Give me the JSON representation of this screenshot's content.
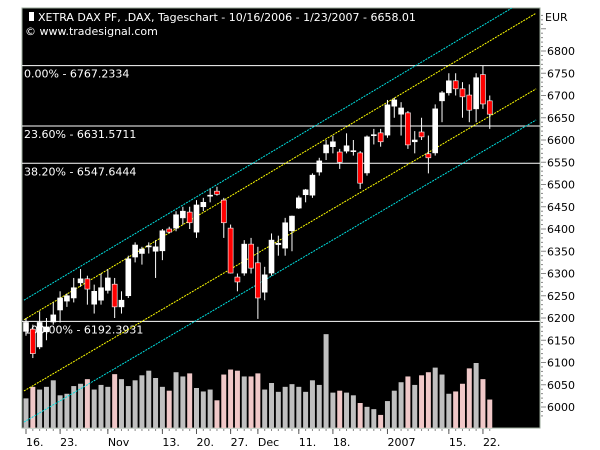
{
  "chart_data": {
    "type": "candlestick",
    "title": "XETRA DAX PF, .DAX, Tageschart - 10/16/2006 - 1/23/2007 - 6658.01",
    "subtitle": "© www.tradesignal.com",
    "ylabel": "EUR",
    "ylim": [
      5975,
      6890
    ],
    "y_ticks": [
      6000,
      6050,
      6100,
      6150,
      6200,
      6250,
      6300,
      6350,
      6400,
      6450,
      6500,
      6550,
      6600,
      6650,
      6700,
      6750,
      6800
    ],
    "x_ticks": [
      {
        "bar": 0,
        "label": "16."
      },
      {
        "bar": 5,
        "label": "23."
      },
      {
        "bar": 12,
        "label": "Nov"
      },
      {
        "bar": 20,
        "label": "13."
      },
      {
        "bar": 25,
        "label": "20."
      },
      {
        "bar": 30,
        "label": "27."
      },
      {
        "bar": 34,
        "label": "Dec"
      },
      {
        "bar": 40,
        "label": "11."
      },
      {
        "bar": 45,
        "label": "18."
      },
      {
        "bar": 53,
        "label": "2007"
      },
      {
        "bar": 62,
        "label": "15."
      },
      {
        "bar": 67,
        "label": "22."
      }
    ],
    "ohlc": [
      [
        6170,
        6200,
        6160,
        6190
      ],
      [
        6175,
        6185,
        6110,
        6120
      ],
      [
        6135,
        6215,
        6130,
        6190
      ],
      [
        6169,
        6200,
        6150,
        6180
      ],
      [
        6191,
        6235,
        6185,
        6207
      ],
      [
        6218,
        6260,
        6190,
        6245
      ],
      [
        6238,
        6255,
        6225,
        6250
      ],
      [
        6245,
        6290,
        6235,
        6268
      ],
      [
        6279,
        6310,
        6270,
        6288
      ],
      [
        6288,
        6295,
        6230,
        6265
      ],
      [
        6231,
        6275,
        6210,
        6260
      ],
      [
        6240,
        6300,
        6230,
        6268
      ],
      [
        6262,
        6310,
        6255,
        6290
      ],
      [
        6276,
        6290,
        6200,
        6225
      ],
      [
        6225,
        6260,
        6210,
        6240
      ],
      [
        6250,
        6340,
        6245,
        6333
      ],
      [
        6337,
        6370,
        6325,
        6364
      ],
      [
        6345,
        6360,
        6320,
        6355
      ],
      [
        6360,
        6370,
        6345,
        6362
      ],
      [
        6350,
        6375,
        6290,
        6360
      ],
      [
        6351,
        6400,
        6330,
        6396
      ],
      [
        6400,
        6405,
        6390,
        6393
      ],
      [
        6402,
        6440,
        6395,
        6432
      ],
      [
        6425,
        6450,
        6410,
        6440
      ],
      [
        6438,
        6450,
        6400,
        6414
      ],
      [
        6393,
        6465,
        6380,
        6454
      ],
      [
        6450,
        6470,
        6440,
        6460
      ],
      [
        6475,
        6490,
        6460,
        6476
      ],
      [
        6485,
        6495,
        6475,
        6478
      ],
      [
        6465,
        6470,
        6380,
        6414
      ],
      [
        6402,
        6410,
        6300,
        6301
      ],
      [
        6292,
        6300,
        6260,
        6281
      ],
      [
        6301,
        6375,
        6295,
        6366
      ],
      [
        6366,
        6380,
        6300,
        6312
      ],
      [
        6324,
        6360,
        6198,
        6245
      ],
      [
        6258,
        6315,
        6240,
        6297
      ],
      [
        6301,
        6390,
        6295,
        6375
      ],
      [
        6365,
        6385,
        6340,
        6368
      ],
      [
        6357,
        6425,
        6340,
        6414
      ],
      [
        6396,
        6430,
        6350,
        6429
      ],
      [
        6447,
        6475,
        6445,
        6470
      ],
      [
        6477,
        6490,
        6460,
        6488
      ],
      [
        6476,
        6525,
        6470,
        6521
      ],
      [
        6528,
        6560,
        6520,
        6553
      ],
      [
        6571,
        6600,
        6555,
        6589
      ],
      [
        6585,
        6610,
        6570,
        6596
      ],
      [
        6573,
        6580,
        6535,
        6550
      ],
      [
        6575,
        6615,
        6570,
        6587
      ],
      [
        6575,
        6600,
        6565,
        6576
      ],
      [
        6571,
        6575,
        6490,
        6503
      ],
      [
        6526,
        6610,
        6520,
        6607
      ],
      [
        6611,
        6625,
        6590,
        6612
      ],
      [
        6616,
        6625,
        6585,
        6596
      ],
      [
        6611,
        6690,
        6605,
        6679
      ],
      [
        6676,
        6695,
        6650,
        6690
      ],
      [
        6658,
        6685,
        6610,
        6672
      ],
      [
        6661,
        6665,
        6580,
        6589
      ],
      [
        6596,
        6620,
        6570,
        6600
      ],
      [
        6618,
        6650,
        6600,
        6607
      ],
      [
        6569,
        6610,
        6525,
        6560
      ],
      [
        6571,
        6680,
        6565,
        6670
      ],
      [
        6688,
        6710,
        6640,
        6706
      ],
      [
        6706,
        6750,
        6700,
        6733
      ],
      [
        6733,
        6750,
        6700,
        6715
      ],
      [
        6715,
        6730,
        6650,
        6697
      ],
      [
        6701,
        6725,
        6640,
        6667
      ],
      [
        6670,
        6750,
        6640,
        6740
      ],
      [
        6747,
        6767,
        6670,
        6681
      ],
      [
        6688,
        6700,
        6625,
        6658
      ]
    ],
    "volume_relative": [
      77,
      107,
      100,
      107,
      124,
      85,
      89,
      109,
      115,
      127,
      100,
      112,
      107,
      140,
      127,
      109,
      124,
      137,
      149,
      130,
      107,
      97,
      145,
      134,
      142,
      104,
      95,
      100,
      72,
      139,
      152,
      149,
      134,
      134,
      142,
      100,
      117,
      94,
      107,
      114,
      107,
      94,
      124,
      112,
      244,
      92,
      97,
      92,
      85,
      65,
      55,
      49,
      34,
      70,
      97,
      119,
      134,
      112,
      137,
      145,
      157,
      139,
      89,
      95,
      115,
      155,
      169,
      127,
      74
    ],
    "fibonacci_levels": [
      {
        "label": "0.00% - 6767.2334",
        "value": 6767.2334
      },
      {
        "label": "23.60% - 6631.5711",
        "value": 6631.5711
      },
      {
        "label": "38.20% - 6547.6444",
        "value": 6547.6444
      },
      {
        "label": "100.00% - 6192.3931",
        "value": 6192.3931
      }
    ],
    "channel_lines": [
      {
        "color": "#00e0e0",
        "from": [
          -0.3,
          6240
        ],
        "to": [
          71.5,
          6899
        ]
      },
      {
        "color": "#ffff00",
        "from": [
          -0.3,
          6196
        ],
        "to": [
          74.8,
          6885
        ]
      },
      {
        "color": "#ffff00",
        "from": [
          -0.3,
          6036
        ],
        "to": [
          74.8,
          6715
        ]
      },
      {
        "color": "#00e0e0",
        "from": [
          -0.3,
          5966
        ],
        "to": [
          74.8,
          6645
        ]
      }
    ],
    "grid": false,
    "colors": {
      "background": "#000000",
      "up": "#ffffff",
      "down": "#ff0000",
      "volume_up": "#c0c0c0",
      "volume_down": "#f0c8c8",
      "fib": "#ffffff"
    }
  }
}
